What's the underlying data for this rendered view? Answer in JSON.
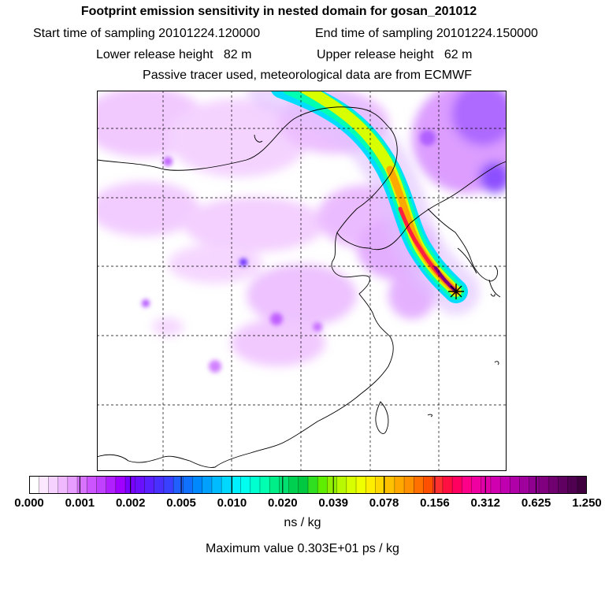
{
  "header": {
    "title": "Footprint emission sensitivity in nested domain for gosan_201012",
    "start_label": "Start time of sampling 20101224.120000",
    "end_label": "End time of sampling 20101224.150000",
    "lower_label": "Lower release height   82 m",
    "upper_label": "Upper release height   62 m",
    "note": "Passive tracer used, meteorological data are from ECMWF"
  },
  "colorbar": {
    "labels": [
      "0.000",
      "0.001",
      "0.002",
      "0.005",
      "0.010",
      "0.020",
      "0.039",
      "0.078",
      "0.156",
      "0.312",
      "0.625",
      "1.250"
    ],
    "colors": [
      "#ffffff",
      "#fbe8ff",
      "#f5d2ff",
      "#efb8ff",
      "#e79cff",
      "#d873ff",
      "#cc55ff",
      "#c040ff",
      "#b020ff",
      "#a000ff",
      "#7a00ff",
      "#6a10ff",
      "#5a20ff",
      "#4a30ff",
      "#3a40ff",
      "#2060ff",
      "#1070ff",
      "#0088ff",
      "#00a0ff",
      "#00bbff",
      "#00d8ff",
      "#00f0ff",
      "#00ffee",
      "#00ffd0",
      "#00ffb0",
      "#00ee88",
      "#00e070",
      "#00d050",
      "#00c840",
      "#30e020",
      "#60ee00",
      "#90f000",
      "#b8f800",
      "#d8ff00",
      "#f0ff00",
      "#ffee00",
      "#ffd800",
      "#ffc000",
      "#ffa800",
      "#ff9000",
      "#ff7000",
      "#ff5000",
      "#ff3030",
      "#ff1040",
      "#ff0060",
      "#ff0088",
      "#f000a0",
      "#e000a8",
      "#d000b0",
      "#c000b0",
      "#b000a8",
      "#a0009c",
      "#900090",
      "#800080",
      "#700070",
      "#600060",
      "#500050",
      "#400040"
    ],
    "units": "ns / kg",
    "max_value_text": "Maximum value  0.303E+01 ps / kg"
  },
  "map": {
    "station_icon": "star-cross-icon"
  }
}
